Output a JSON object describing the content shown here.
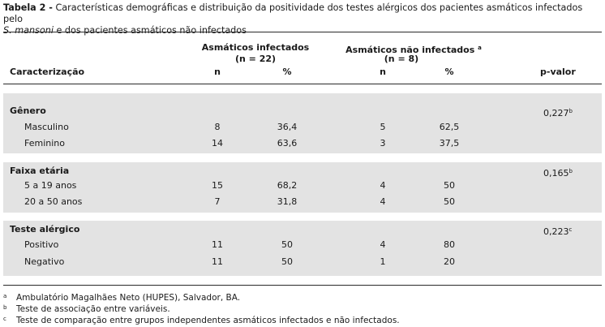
{
  "caption": {
    "label": "Tabela 2 -",
    "text_line1": "Características demográficas e distribuição da positividade dos testes alérgicos dos pacientes asmáticos infectados pelo",
    "species": "S. mansoni",
    "text_line2": " e dos pacientes asmáticos não infectados"
  },
  "header": {
    "group1_title": "Asmáticos infectados",
    "group1_n": "(n = 22)",
    "group2_title": "Asmáticos não infectados",
    "group2_sup": "a",
    "group2_n": "(n = 8)",
    "col_caracterizacao": "Caracterização",
    "col_n": "n",
    "col_pct": "%",
    "col_pvalor": "p-valor"
  },
  "sections": [
    {
      "title": "Gênero",
      "pvalue": "0,227",
      "pvalue_sup": "b",
      "rows": [
        {
          "label": "Masculino",
          "n1": "8",
          "p1": "36,4",
          "n2": "5",
          "p2": "62,5"
        },
        {
          "label": "Feminino",
          "n1": "14",
          "p1": "63,6",
          "n2": "3",
          "p2": "37,5"
        }
      ]
    },
    {
      "title": "Faixa etária",
      "pvalue": "0,165",
      "pvalue_sup": "b",
      "rows": [
        {
          "label": "5 a 19 anos",
          "n1": "15",
          "p1": "68,2",
          "n2": "4",
          "p2": "50"
        },
        {
          "label": "20 a 50 anos",
          "n1": "7",
          "p1": "31,8",
          "n2": "4",
          "p2": "50"
        }
      ]
    },
    {
      "title": "Teste alérgico",
      "pvalue": "0,223",
      "pvalue_sup": "c",
      "rows": [
        {
          "label": "Positivo",
          "n1": "11",
          "p1": "50",
          "n2": "4",
          "p2": "80"
        },
        {
          "label": "Negativo",
          "n1": "11",
          "p1": "50",
          "n2": "1",
          "p2": "20"
        }
      ]
    }
  ],
  "footnotes": [
    {
      "mark": "a",
      "text": "Ambulatório Magalhães Neto (HUPES), Salvador, BA."
    },
    {
      "mark": "b",
      "text": "Teste de associação entre variáveis."
    },
    {
      "mark": "c",
      "text": "Teste de comparação entre grupos independentes asmáticos infectados e não infectados."
    }
  ]
}
